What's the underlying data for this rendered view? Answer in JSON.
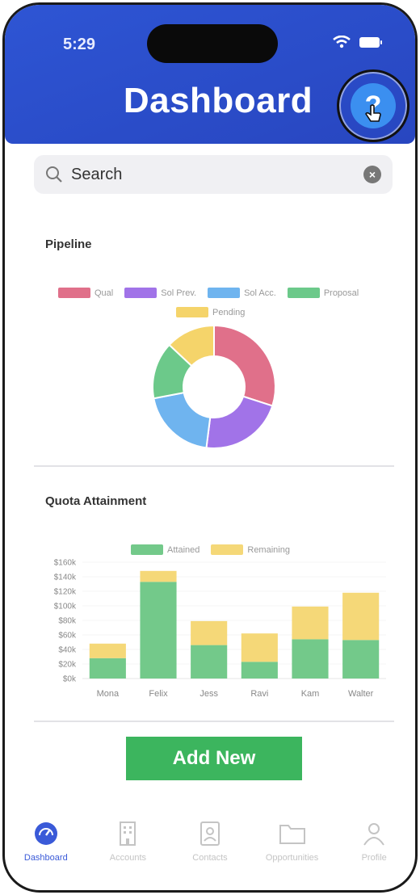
{
  "status": {
    "time": "5:29"
  },
  "header": {
    "title": "Dashboard",
    "help_label": "?"
  },
  "search": {
    "placeholder": "Search"
  },
  "pipeline": {
    "title": "Pipeline",
    "legend": [
      {
        "label": "Qual",
        "color": "#e0708a"
      },
      {
        "label": "Sol Prev.",
        "color": "#a173e8"
      },
      {
        "label": "Sol Acc.",
        "color": "#6fb4ef"
      },
      {
        "label": "Proposal",
        "color": "#6cc98a"
      },
      {
        "label": "Pending",
        "color": "#f5d46a"
      }
    ]
  },
  "quota": {
    "title": "Quota Attainment",
    "legend": [
      {
        "label": "Attained",
        "color": "#73c98a"
      },
      {
        "label": "Remaining",
        "color": "#f5d878"
      }
    ]
  },
  "chart_data": [
    {
      "type": "pie",
      "title": "Pipeline",
      "categories": [
        "Qual",
        "Sol Prev.",
        "Sol Acc.",
        "Proposal",
        "Pending"
      ],
      "values": [
        30,
        22,
        20,
        15,
        13
      ],
      "colors": [
        "#e0708a",
        "#a173e8",
        "#6fb4ef",
        "#6cc98a",
        "#f5d46a"
      ],
      "donut": true,
      "legend": "top"
    },
    {
      "type": "bar",
      "stacked": true,
      "title": "Quota Attainment",
      "categories": [
        "Mona",
        "Felix",
        "Jess",
        "Ravi",
        "Kam",
        "Walter"
      ],
      "series": [
        {
          "name": "Attained",
          "values": [
            28000,
            133000,
            46000,
            23000,
            54000,
            53000
          ],
          "color": "#73c98a"
        },
        {
          "name": "Remaining",
          "values": [
            20000,
            15000,
            33000,
            39000,
            45000,
            65000
          ],
          "color": "#f5d878"
        }
      ],
      "yticks": [
        "$0k",
        "$20k",
        "$40k",
        "$60k",
        "$80k",
        "$100k",
        "$120k",
        "$140k",
        "$160k"
      ],
      "ylim": [
        0,
        160000
      ],
      "legend": "top"
    }
  ],
  "add_button": {
    "label": "Add New"
  },
  "tabs": [
    {
      "label": "Dashboard",
      "icon": "dashboard-gauge-icon",
      "active": true
    },
    {
      "label": "Accounts",
      "icon": "building-icon",
      "active": false
    },
    {
      "label": "Contacts",
      "icon": "contact-card-icon",
      "active": false
    },
    {
      "label": "Opportunities",
      "icon": "folder-icon",
      "active": false
    },
    {
      "label": "Profile",
      "icon": "person-icon",
      "active": false
    }
  ]
}
